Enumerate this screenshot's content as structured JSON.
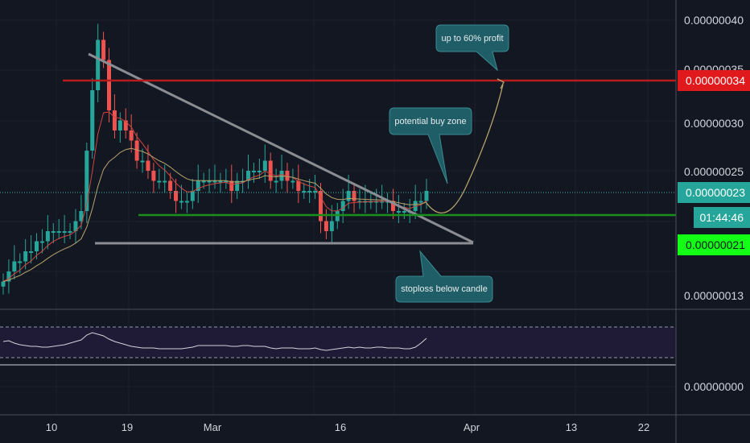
{
  "chart_data": {
    "type": "candlestick",
    "series": [
      {
        "name": "price",
        "values": [
          14,
          15,
          16,
          16,
          17,
          17,
          18,
          18,
          19,
          19,
          19,
          19,
          19,
          20,
          21,
          27,
          33,
          38,
          36,
          31,
          29,
          30,
          29,
          28,
          26,
          26,
          25,
          24,
          24,
          24,
          23,
          22,
          22,
          22,
          23,
          24,
          24,
          24,
          24,
          24,
          24,
          23,
          24,
          24,
          25,
          25,
          25,
          26,
          24,
          24,
          25,
          24,
          24,
          23,
          23,
          23,
          23,
          20,
          19,
          20,
          21,
          22,
          23,
          22,
          22,
          22,
          22,
          22,
          22,
          22,
          21,
          21,
          21,
          21,
          22,
          22,
          23
        ]
      },
      {
        "name": "rsi",
        "values": [
          52,
          53,
          50,
          48,
          47,
          46,
          46,
          45,
          45,
          46,
          47,
          48,
          50,
          52,
          54,
          60,
          63,
          61,
          59,
          55,
          52,
          50,
          48,
          46,
          45,
          44,
          44,
          44,
          43,
          43,
          43,
          43,
          43,
          44,
          45,
          47,
          47,
          47,
          47,
          47,
          47,
          46,
          46,
          47,
          47,
          46,
          46,
          46,
          44,
          43,
          44,
          44,
          44,
          43,
          43,
          43,
          44,
          42,
          41,
          42,
          43,
          44,
          45,
          44,
          45,
          44,
          44,
          45,
          45,
          44,
          44,
          44,
          43,
          43,
          45,
          50,
          56
        ]
      }
    ],
    "y_ticks": [
      "0.00000040",
      "0.00000035",
      "0.00000030",
      "0.00000025",
      "0.00000013"
    ],
    "x_ticks": [
      "10",
      "19",
      "Mar",
      "16",
      "Apr",
      "13",
      "22"
    ],
    "rsi_axis_tick": "0.00000000",
    "levels": [
      {
        "name": "resistance",
        "value": "0.00000034",
        "color": "#b71c1c"
      },
      {
        "name": "buy-level",
        "value": "0.00000021",
        "color": "#1b8f1b"
      }
    ],
    "last_price_tag": "0.00000023",
    "countdown": "01:44:46",
    "annotations": [
      {
        "text": "up to 60% profit"
      },
      {
        "text": "potential buy zone"
      },
      {
        "text": "stoploss below candle"
      }
    ],
    "colors": {
      "up": "#26a69a",
      "down": "#ef5350",
      "background": "#131722",
      "annotation_box": "#1f5e66"
    }
  }
}
